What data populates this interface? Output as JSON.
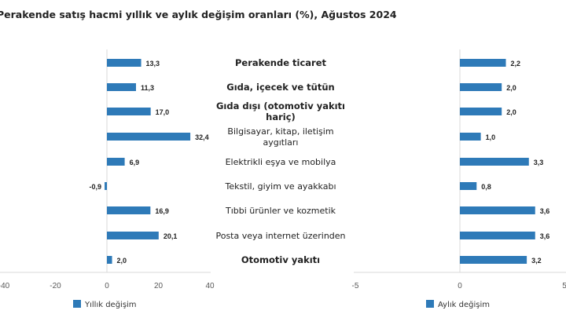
{
  "chart_data": [
    {
      "type": "bar",
      "orientation": "horizontal",
      "title": "Perakende satış hacmi yıllık ve aylık değişim oranları (%), Ağustos 2024",
      "categories": [
        "Perakende ticaret",
        "Gıda, içecek ve tütün",
        "Gıda dışı (otomotiv yakıtı hariç)",
        "Bilgisayar, kitap, iletişim aygıtları",
        "Elektrikli eşya ve mobilya",
        "Tekstil, giyim ve ayakkabı",
        "Tıbbi ürünler ve kozmetik",
        "Posta veya internet üzerinden",
        "Otomotiv yakıtı"
      ],
      "category_labels": [
        [
          "Perakende ticaret"
        ],
        [
          "Gıda, içecek ve tütün"
        ],
        [
          "Gıda dışı (otomotiv yakıtı",
          "hariç)"
        ],
        [
          "Bilgisayar, kitap, iletişim",
          "aygıtları"
        ],
        [
          "Elektrikli eşya ve mobilya"
        ],
        [
          "Tekstil, giyim ve ayakkabı"
        ],
        [
          "Tıbbi ürünler ve kozmetik"
        ],
        [
          "Posta veya internet üzerinden"
        ],
        [
          "Otomotiv yakıtı"
        ]
      ],
      "bold_categories": [
        true,
        true,
        true,
        false,
        false,
        false,
        false,
        false,
        true
      ],
      "series": [
        {
          "name": "Yıllık değişim",
          "values": [
            13.3,
            11.3,
            17.0,
            32.4,
            6.9,
            -0.9,
            16.9,
            20.1,
            2.0
          ],
          "labels": [
            "13,3",
            "11,3",
            "17,0",
            "32,4",
            "6,9",
            "-0,9",
            "16,9",
            "20,1",
            "2,0"
          ],
          "xlim": [
            -40,
            40
          ],
          "ticks": [
            "-40",
            "-20",
            "0",
            "20",
            "40"
          ],
          "tick_values": [
            -40,
            -20,
            0,
            20,
            40
          ]
        },
        {
          "name": "Aylık değişim",
          "values": [
            2.2,
            2.0,
            2.0,
            1.0,
            3.3,
            0.8,
            3.6,
            3.6,
            3.2
          ],
          "labels": [
            "2,2",
            "2,0",
            "2,0",
            "1,0",
            "3,3",
            "0,8",
            "3,6",
            "3,6",
            "3,2"
          ],
          "xlim": [
            -5,
            5
          ],
          "ticks": [
            "-5",
            "0",
            "5"
          ],
          "tick_values": [
            -5,
            0,
            5
          ]
        }
      ],
      "color": "#2e7ab8",
      "legend": "bottom"
    }
  ]
}
